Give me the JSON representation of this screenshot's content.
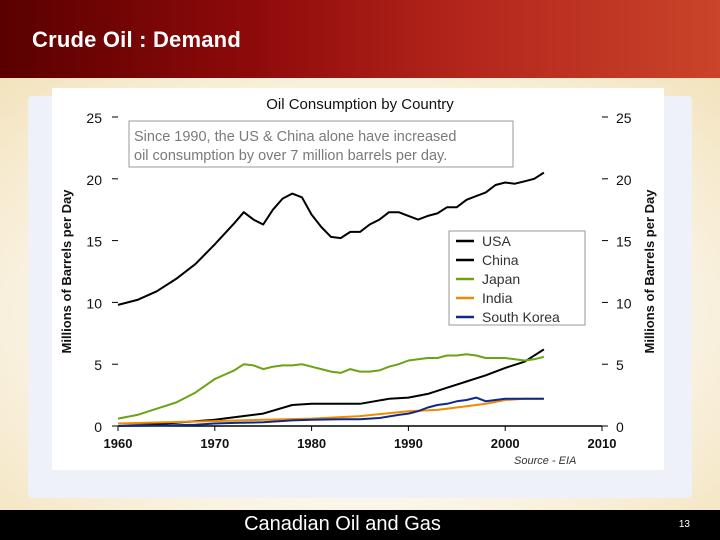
{
  "slide": {
    "title": "Crude Oil : Demand",
    "footer": "Canadian Oil and Gas",
    "page_number": "13"
  },
  "colors": {
    "USA": "#000000",
    "China": "#000000",
    "Japan": "#6aa313",
    "India": "#f08a00",
    "South Korea": "#0c2a8c"
  },
  "chart_data": {
    "type": "line",
    "title": "Oil Consumption by Country",
    "annotation": "Since 1990, the US & China alone have increased oil consumption by over 7 million barrels per day.",
    "source": "Source - EIA",
    "ylabel": "Millions of Barrels per Day",
    "ylabel_right": "Millions of Barrels per Day",
    "xlim": [
      1960,
      2010
    ],
    "ylim": [
      0,
      25
    ],
    "xticks": [
      1960,
      1970,
      1980,
      1990,
      2000,
      2010
    ],
    "yticks": [
      0,
      5,
      10,
      15,
      20,
      25
    ],
    "legend": [
      "USA",
      "China",
      "Japan",
      "India",
      "South Korea"
    ],
    "legend_position": "right",
    "series": [
      {
        "name": "USA",
        "x": [
          1960,
          1962,
          1964,
          1966,
          1968,
          1970,
          1972,
          1973,
          1974,
          1975,
          1976,
          1977,
          1978,
          1979,
          1980,
          1981,
          1982,
          1983,
          1984,
          1985,
          1986,
          1987,
          1988,
          1989,
          1990,
          1991,
          1992,
          1993,
          1994,
          1995,
          1996,
          1997,
          1998,
          1999,
          2000,
          2001,
          2002,
          2003,
          2004
        ],
        "values": [
          9.8,
          10.2,
          10.9,
          11.9,
          13.1,
          14.7,
          16.4,
          17.3,
          16.7,
          16.3,
          17.5,
          18.4,
          18.8,
          18.5,
          17.1,
          16.1,
          15.3,
          15.2,
          15.7,
          15.7,
          16.3,
          16.7,
          17.3,
          17.3,
          17.0,
          16.7,
          17.0,
          17.2,
          17.7,
          17.7,
          18.3,
          18.6,
          18.9,
          19.5,
          19.7,
          19.6,
          19.8,
          20.0,
          20.5
        ]
      },
      {
        "name": "China",
        "x": [
          1960,
          1965,
          1970,
          1972,
          1975,
          1978,
          1980,
          1985,
          1988,
          1990,
          1992,
          1994,
          1996,
          1998,
          2000,
          2002,
          2004
        ],
        "values": [
          0.2,
          0.2,
          0.5,
          0.7,
          1.0,
          1.7,
          1.8,
          1.8,
          2.2,
          2.3,
          2.6,
          3.1,
          3.6,
          4.1,
          4.7,
          5.2,
          6.2
        ]
      },
      {
        "name": "Japan",
        "x": [
          1960,
          1962,
          1964,
          1966,
          1968,
          1970,
          1972,
          1973,
          1974,
          1975,
          1976,
          1977,
          1978,
          1979,
          1980,
          1981,
          1982,
          1983,
          1984,
          1985,
          1986,
          1987,
          1988,
          1989,
          1990,
          1991,
          1992,
          1993,
          1994,
          1995,
          1996,
          1997,
          1998,
          1999,
          2000,
          2001,
          2002,
          2003,
          2004
        ],
        "values": [
          0.6,
          0.9,
          1.4,
          1.9,
          2.7,
          3.8,
          4.5,
          5.0,
          4.9,
          4.6,
          4.8,
          4.9,
          4.9,
          5.0,
          4.8,
          4.6,
          4.4,
          4.3,
          4.6,
          4.4,
          4.4,
          4.5,
          4.8,
          5.0,
          5.3,
          5.4,
          5.5,
          5.5,
          5.7,
          5.7,
          5.8,
          5.7,
          5.5,
          5.5,
          5.5,
          5.4,
          5.3,
          5.4,
          5.6
        ]
      },
      {
        "name": "India",
        "x": [
          1960,
          1965,
          1970,
          1975,
          1980,
          1985,
          1990,
          1993,
          1996,
          1998,
          2000,
          2002,
          2004
        ],
        "values": [
          0.2,
          0.3,
          0.4,
          0.5,
          0.6,
          0.8,
          1.2,
          1.3,
          1.6,
          1.8,
          2.1,
          2.2,
          2.2
        ]
      },
      {
        "name": "South Korea",
        "x": [
          1960,
          1965,
          1968,
          1970,
          1972,
          1975,
          1978,
          1980,
          1983,
          1985,
          1987,
          1989,
          1990,
          1991,
          1992,
          1993,
          1994,
          1995,
          1996,
          1997,
          1998,
          1999,
          2000,
          2002,
          2004
        ],
        "values": [
          0.0,
          0.05,
          0.1,
          0.2,
          0.25,
          0.3,
          0.45,
          0.5,
          0.55,
          0.55,
          0.65,
          0.9,
          1.0,
          1.2,
          1.5,
          1.7,
          1.8,
          2.0,
          2.1,
          2.3,
          2.0,
          2.1,
          2.2,
          2.2,
          2.2
        ]
      }
    ]
  }
}
